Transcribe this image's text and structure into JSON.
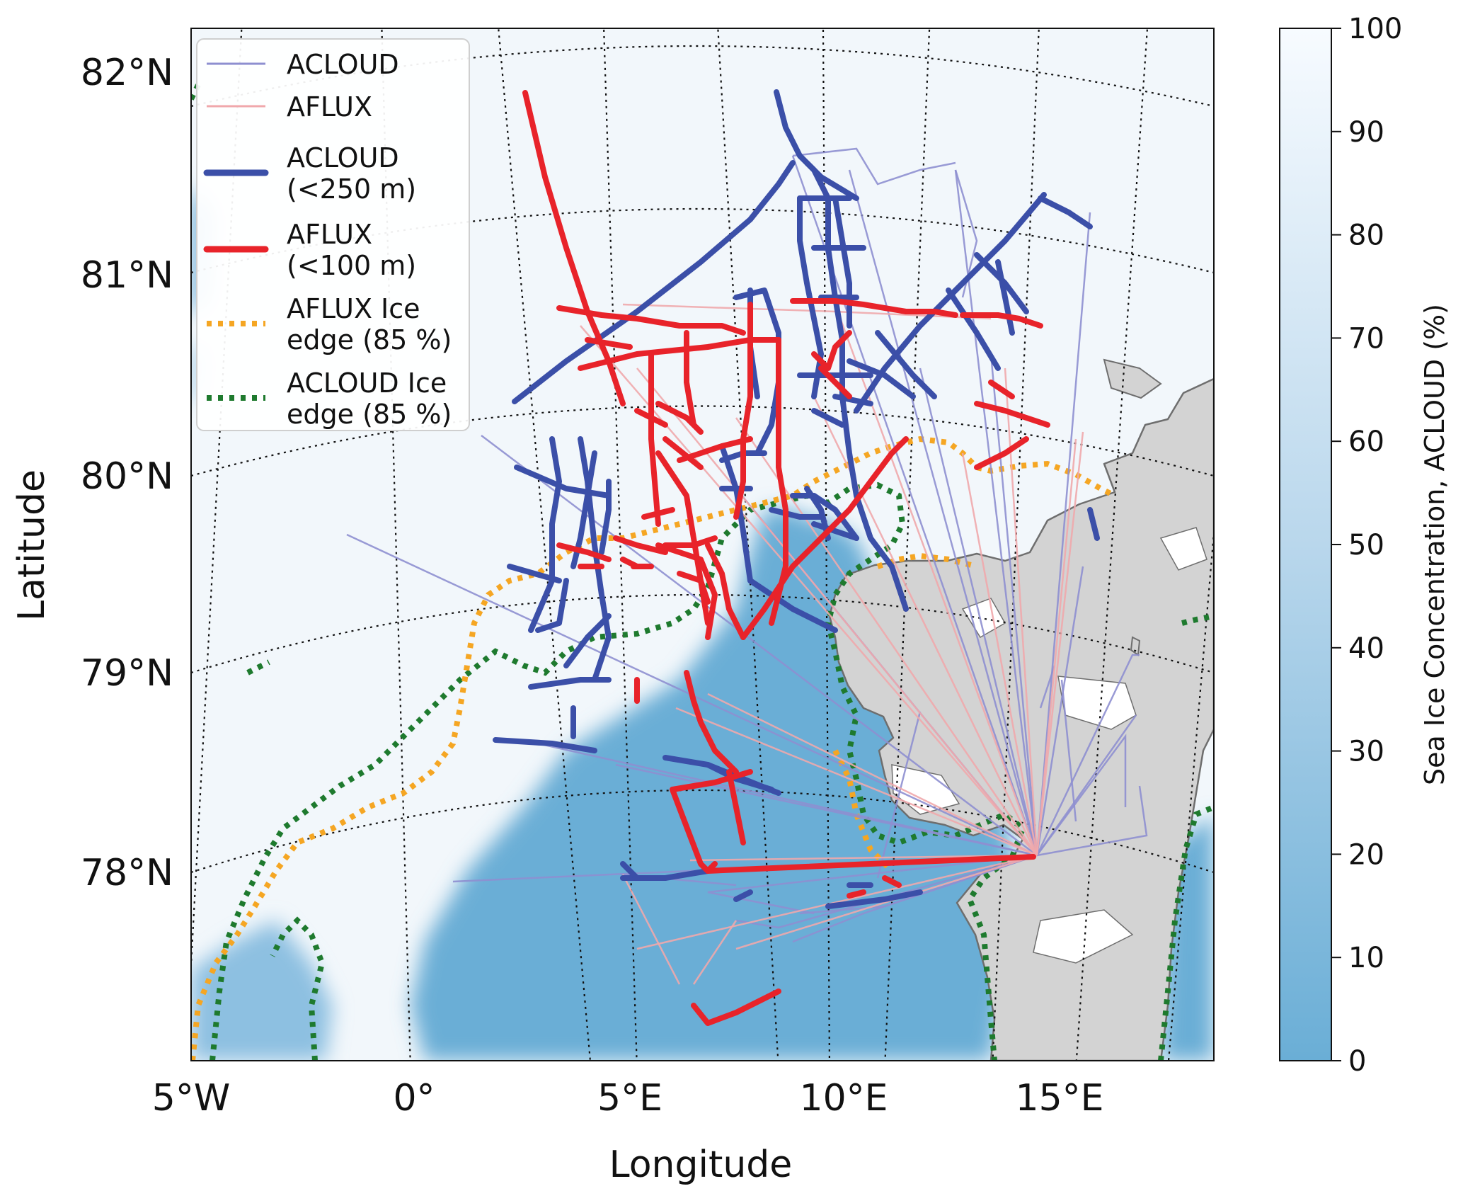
{
  "axes": {
    "xlabel": "Longitude",
    "ylabel": "Latitude",
    "lat_ticks": [
      {
        "label": "82°N",
        "lat": 82
      },
      {
        "label": "81°N",
        "lat": 81
      },
      {
        "label": "80°N",
        "lat": 80
      },
      {
        "label": "79°N",
        "lat": 79
      },
      {
        "label": "78°N",
        "lat": 78
      }
    ],
    "lon_ticks": [
      {
        "label": "5°W",
        "lon": -5
      },
      {
        "label": "0°",
        "lon": 0
      },
      {
        "label": "5°E",
        "lon": 5
      },
      {
        "label": "10°E",
        "lon": 10
      },
      {
        "label": "15°E",
        "lon": 15
      }
    ]
  },
  "colorbar": {
    "label": "Sea Ice Concentration, ACLOUD (%)",
    "ticks": [
      "0",
      "10",
      "20",
      "30",
      "40",
      "50",
      "60",
      "70",
      "80",
      "90",
      "100"
    ],
    "color_low": "#6aaed6",
    "color_high": "#f7fbff"
  },
  "legend": {
    "position": "top-left",
    "items": [
      {
        "key": "acloud_thin",
        "label_lines": [
          "ACLOUD"
        ],
        "color": "#8e8fd0",
        "style": "thin"
      },
      {
        "key": "aflux_thin",
        "label_lines": [
          "AFLUX"
        ],
        "color": "#f0a8ac",
        "style": "thin"
      },
      {
        "key": "acloud_low",
        "label_lines": [
          "ACLOUD",
          "(<250 m)"
        ],
        "color": "#3b4fa8",
        "style": "thick"
      },
      {
        "key": "aflux_low",
        "label_lines": [
          "AFLUX",
          "(<100 m)"
        ],
        "color": "#e8232a",
        "style": "thick"
      },
      {
        "key": "aflux_edge",
        "label_lines": [
          "AFLUX Ice",
          "edge (85 %)"
        ],
        "color": "#f5a623",
        "style": "dotted"
      },
      {
        "key": "acloud_edge",
        "label_lines": [
          "ACLOUD Ice",
          "edge (85 %)"
        ],
        "color": "#1e7a2e",
        "style": "dotted"
      }
    ]
  },
  "colors": {
    "land": "#d3d3d3",
    "coast": "#6e6e6e",
    "open_water": "#6aaed6",
    "sea_ice": "#f2f7fb",
    "grid": "#111111"
  }
}
